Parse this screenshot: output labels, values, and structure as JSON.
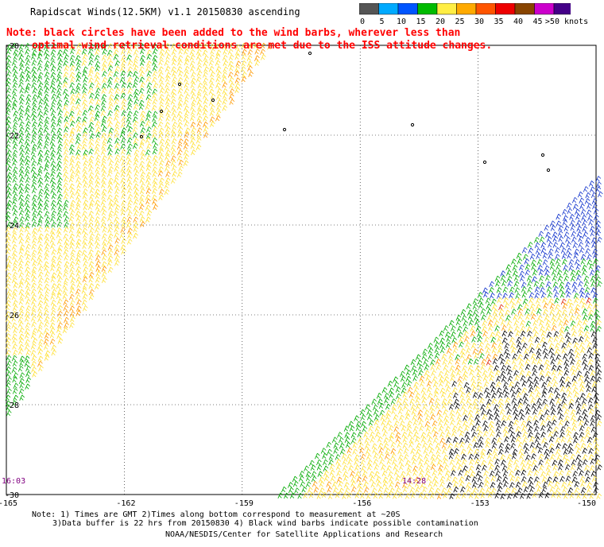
{
  "header": {
    "title": "Rapidscat Winds(12.5KM) v1.1 20150830 ascending",
    "note_line1": "Note: black circles have been added to the wind barbs, wherever less than",
    "note_line2": "optimal wind retrieval conditions are met due to the ISS attitude changes."
  },
  "legend": {
    "bins": [
      {
        "label": "0",
        "color": "#555555"
      },
      {
        "label": "5",
        "color": "#00aaff"
      },
      {
        "label": "10",
        "color": "#0055ff"
      },
      {
        "label": "15",
        "color": "#00bb00"
      },
      {
        "label": "20",
        "color": "#ffee44"
      },
      {
        "label": "25",
        "color": "#ffaa00"
      },
      {
        "label": "30",
        "color": "#ff5500"
      },
      {
        "label": "35",
        "color": "#ee0000"
      },
      {
        "label": "40",
        "color": "#884400"
      },
      {
        "label": "45",
        "color": "#cc00cc"
      },
      {
        "label": ">50 knots",
        "color": "#440088"
      }
    ]
  },
  "map": {
    "lat_labels": [
      "-20",
      "-22",
      "-24",
      "-26",
      "-28",
      "-30"
    ],
    "lon_labels": [
      "-165",
      "-162",
      "-159",
      "-156",
      "-153",
      "-150"
    ],
    "lat_range": [
      -30,
      -20
    ],
    "lon_range": [
      -165,
      -150
    ],
    "grid": "dotted",
    "time_left": "16:03",
    "time_right": "14:28",
    "colors": {
      "green": "#00aa00",
      "yellow": "#ffe033",
      "orange": "#ff9900",
      "blue": "#1133cc",
      "black": "#000000",
      "red": "#dd2200"
    }
  },
  "footer": {
    "line1": "Note: 1) Times are GMT 2)Times along bottom correspond to measurement at ~20S",
    "line2": "3)Data buffer is 22 hrs from 20150830 4) Black wind barbs indicate possible contamination",
    "credit": "NOAA/NESDIS/Center for Satellite Applications and Research"
  }
}
